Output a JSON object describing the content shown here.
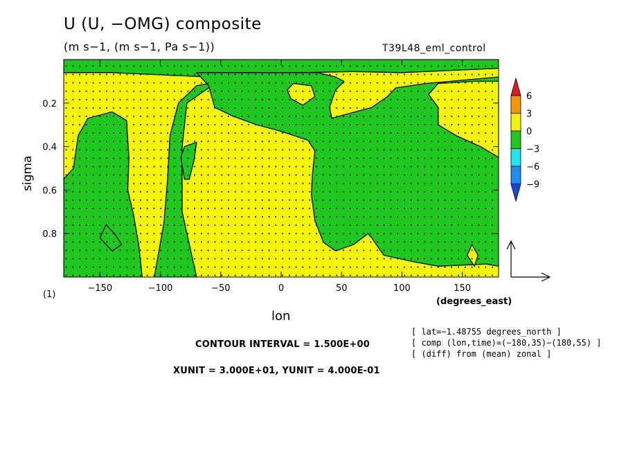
{
  "chart_data": {
    "type": "contour",
    "title": "U (U, −OMG) composite",
    "units": "(m s−1, (m s−1, Pa s−1))",
    "run_name": "T39L48_eml_control",
    "xlabel": "lon",
    "x_units": "(degrees_east)",
    "ylabel": "sigma",
    "y_units": "(1)",
    "xlim": [
      -180,
      180
    ],
    "ylim": [
      0.0,
      1.0
    ],
    "y_inverted": true,
    "x_ticks": [
      -150,
      -100,
      -50,
      0,
      50,
      100,
      150
    ],
    "y_ticks": [
      0.2,
      0.4,
      0.6,
      0.8
    ],
    "colorbar": {
      "levels": [
        6,
        3,
        0,
        -3,
        -6,
        -9
      ],
      "colors": [
        "#d81e1e",
        "#f39800",
        "#f5f500",
        "#1ec81e",
        "#1ee6f0",
        "#1e8cf0",
        "#1e46dc"
      ]
    },
    "contour_interval": "CONTOUR INTERVAL = 1.500E+00",
    "vector_units": "XUNIT = 3.000E+01, YUNIT = 4.000E-01",
    "info": [
      "[ lat=−1.48755 degrees_north ]",
      "[ comp (lon,time)=(−180,35)−(180,55) ]",
      "[ (diff) from (mean) zonal ]"
    ],
    "regions_negative": [
      {
        "lon": [
          -175,
          -120
        ],
        "sigma": [
          0.25,
          1.0
        ]
      },
      {
        "lon": [
          -95,
          -80
        ],
        "sigma": [
          0.15,
          1.0
        ]
      },
      {
        "lon": [
          -30,
          45
        ],
        "sigma": [
          0.1,
          0.95
        ]
      },
      {
        "lon": [
          80,
          180
        ],
        "sigma": [
          0.02,
          0.95
        ]
      }
    ]
  }
}
